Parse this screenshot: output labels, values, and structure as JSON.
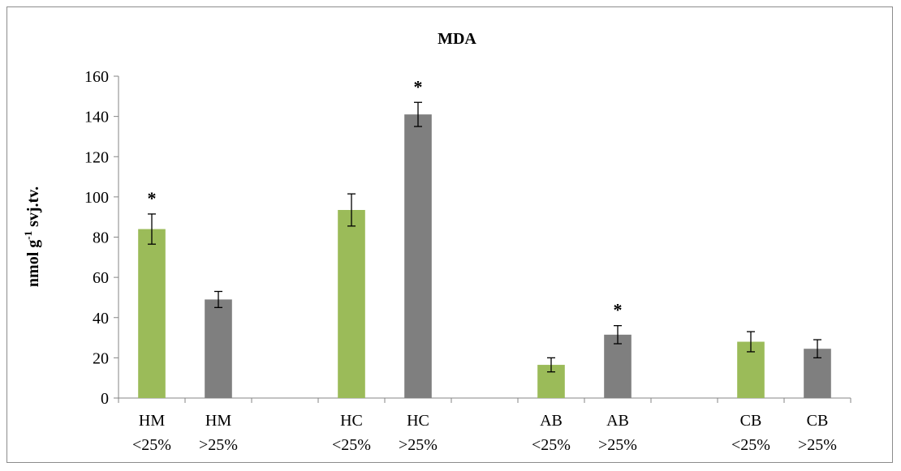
{
  "chart_data": {
    "type": "bar",
    "title": "MDA",
    "ylabel": "nmol g",
    "ylabel_superscript": "-1",
    "ylabel_suffix": " svj.tv.",
    "xlabel": "",
    "ylim": [
      0,
      160
    ],
    "yticks": [
      0,
      20,
      40,
      60,
      80,
      100,
      120,
      140,
      160
    ],
    "grid": false,
    "legend": "none",
    "significance_marker": "*",
    "colors": {
      "low": "#9bbb59",
      "high": "#7f7f7f"
    },
    "groups": [
      {
        "bars": [
          {
            "line1": "HM",
            "line2": "<25%",
            "value": 84,
            "error": 7.5,
            "significant": true,
            "color_key": "low"
          },
          {
            "line1": "HM",
            "line2": ">25%",
            "value": 49,
            "error": 4,
            "significant": false,
            "color_key": "high"
          }
        ]
      },
      {
        "bars": [
          {
            "line1": "HC",
            "line2": "<25%",
            "value": 93.5,
            "error": 8,
            "significant": false,
            "color_key": "low"
          },
          {
            "line1": "HC",
            "line2": ">25%",
            "value": 141,
            "error": 6,
            "significant": true,
            "color_key": "high"
          }
        ]
      },
      {
        "bars": [
          {
            "line1": "AB",
            "line2": "<25%",
            "value": 16.5,
            "error": 3.5,
            "significant": false,
            "color_key": "low"
          },
          {
            "line1": "AB",
            "line2": ">25%",
            "value": 31.5,
            "error": 4.5,
            "significant": true,
            "color_key": "high"
          }
        ]
      },
      {
        "bars": [
          {
            "line1": "CB",
            "line2": "<25%",
            "value": 28,
            "error": 5,
            "significant": false,
            "color_key": "low"
          },
          {
            "line1": "CB",
            "line2": ">25%",
            "value": 24.5,
            "error": 4.5,
            "significant": false,
            "color_key": "high"
          }
        ]
      }
    ]
  }
}
